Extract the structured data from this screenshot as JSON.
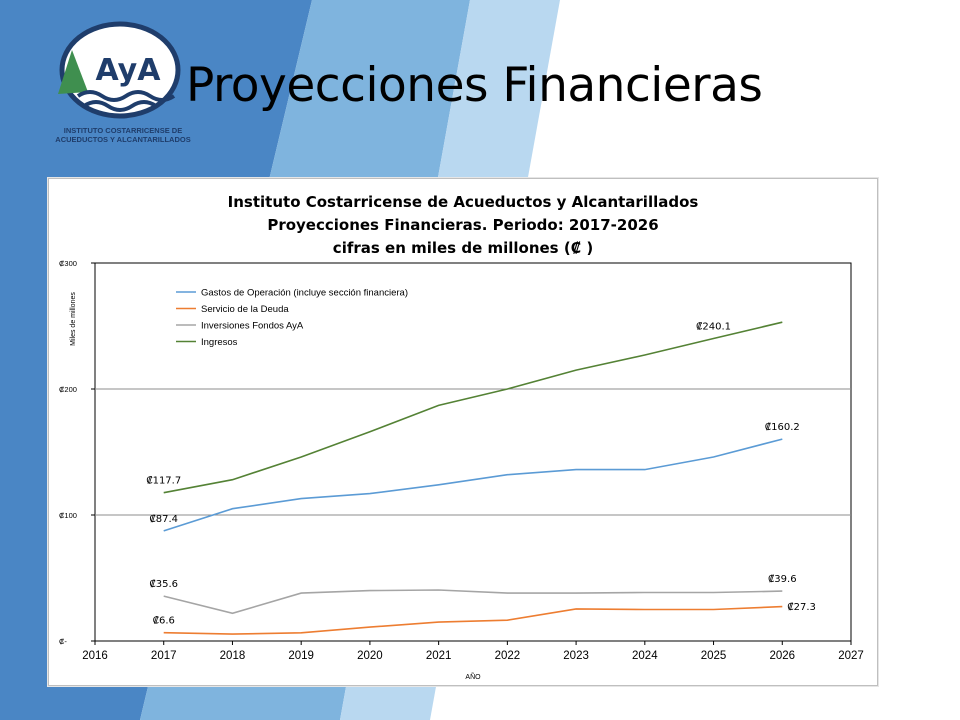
{
  "slide": {
    "title": "Proyecciones Financieras",
    "logo_text": "AyA",
    "logo_caption": "INSTITUTO COSTARRICENSE DE\nACUEDUCTOS Y ALCANTARILLADOS"
  },
  "colors": {
    "band_dark": "#4a86c5",
    "band_mid": "#7fb4de",
    "band_light": "#b9d8f0",
    "logo_blue": "#1f3d6b",
    "logo_green": "#3f8f4f"
  },
  "chart_data": {
    "type": "line",
    "title_lines": [
      "Instituto Costarricense de Acueductos y Alcantarillados",
      "Proyecciones Financieras. Periodo: 2017-2026",
      "cifras en miles de millones (₡ )"
    ],
    "xlabel": "AÑO",
    "ylabel": "Miles de millones",
    "xlim": [
      2016,
      2027
    ],
    "ylim": [
      0,
      300
    ],
    "x_ticks": [
      "2016",
      "2017",
      "2018",
      "2019",
      "2020",
      "2021",
      "2022",
      "2023",
      "2024",
      "2025",
      "2026",
      "2027"
    ],
    "y_ticks": [
      {
        "value": 0,
        "label": "₡-"
      },
      {
        "value": 100,
        "label": "₡100"
      },
      {
        "value": 200,
        "label": "₡200"
      },
      {
        "value": 300,
        "label": "₡300"
      }
    ],
    "grid": "horizontal",
    "legend_position": "top-left",
    "x": [
      2017,
      2018,
      2019,
      2020,
      2021,
      2022,
      2023,
      2024,
      2025,
      2026
    ],
    "series": [
      {
        "name": "Gastos de Operación (incluye sección financiera)",
        "color": "#5b9bd5",
        "values": [
          87.4,
          105,
          113,
          117,
          124,
          132,
          136,
          136,
          146,
          160.2
        ]
      },
      {
        "name": "Servicio de la Deuda",
        "color": "#ed7d31",
        "values": [
          6.6,
          5.5,
          6.5,
          11,
          15,
          16.5,
          25.5,
          25,
          25,
          27.3
        ]
      },
      {
        "name": "Inversiones Fondos AyA",
        "color": "#a5a5a5",
        "values": [
          35.6,
          22,
          38,
          40,
          40.5,
          38,
          38,
          38.5,
          38.5,
          39.6
        ]
      },
      {
        "name": "Ingresos",
        "color": "#548235",
        "values": [
          117.7,
          128,
          146,
          166,
          187,
          200,
          215,
          227,
          240.1,
          253
        ]
      }
    ],
    "annotations": [
      {
        "text": "₡117.7",
        "x": 2017,
        "y": 117.7,
        "pos": "above"
      },
      {
        "text": "₡87.4",
        "x": 2017,
        "y": 87.4,
        "pos": "above"
      },
      {
        "text": "₡35.6",
        "x": 2017,
        "y": 35.6,
        "pos": "above"
      },
      {
        "text": "₡6.6",
        "x": 2017,
        "y": 6.6,
        "pos": "above"
      },
      {
        "text": "₡240.1",
        "x": 2025,
        "y": 240.1,
        "pos": "above"
      },
      {
        "text": "₡160.2",
        "x": 2026,
        "y": 160.2,
        "pos": "above"
      },
      {
        "text": "₡39.6",
        "x": 2026,
        "y": 39.6,
        "pos": "above"
      },
      {
        "text": "₡27.3",
        "x": 2026,
        "y": 27.3,
        "pos": "right"
      }
    ]
  }
}
